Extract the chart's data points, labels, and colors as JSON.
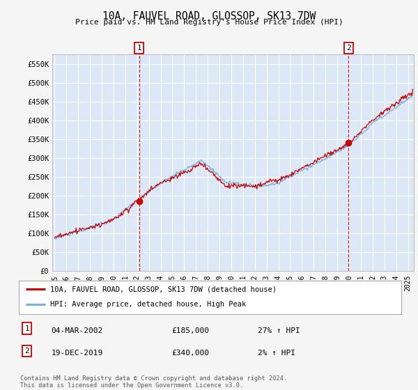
{
  "title": "10A, FAUVEL ROAD, GLOSSOP, SK13 7DW",
  "subtitle": "Price paid vs. HM Land Registry's House Price Index (HPI)",
  "ylabel_ticks": [
    "£0",
    "£50K",
    "£100K",
    "£150K",
    "£200K",
    "£250K",
    "£300K",
    "£350K",
    "£400K",
    "£450K",
    "£500K",
    "£550K"
  ],
  "ytick_values": [
    0,
    50000,
    100000,
    150000,
    200000,
    250000,
    300000,
    350000,
    400000,
    450000,
    500000,
    550000
  ],
  "ylim": [
    0,
    575000
  ],
  "xlim_start": 1994.8,
  "xlim_end": 2025.5,
  "plot_bg_color": "#dce8f5",
  "grid_color": "#ffffff",
  "marker1_date": 2002.17,
  "marker1_price": 185000,
  "marker1_label": "04-MAR-2002",
  "marker1_amount": "£185,000",
  "marker1_note": "27% ↑ HPI",
  "marker2_date": 2019.96,
  "marker2_price": 340000,
  "marker2_label": "19-DEC-2019",
  "marker2_amount": "£340,000",
  "marker2_note": "2% ↑ HPI",
  "red_line_color": "#cc0000",
  "blue_line_color": "#7aade0",
  "legend_label_red": "10A, FAUVEL ROAD, GLOSSOP, SK13 7DW (detached house)",
  "legend_label_blue": "HPI: Average price, detached house, High Peak",
  "footnote1": "Contains HM Land Registry data © Crown copyright and database right 2024.",
  "footnote2": "This data is licensed under the Open Government Licence v3.0."
}
